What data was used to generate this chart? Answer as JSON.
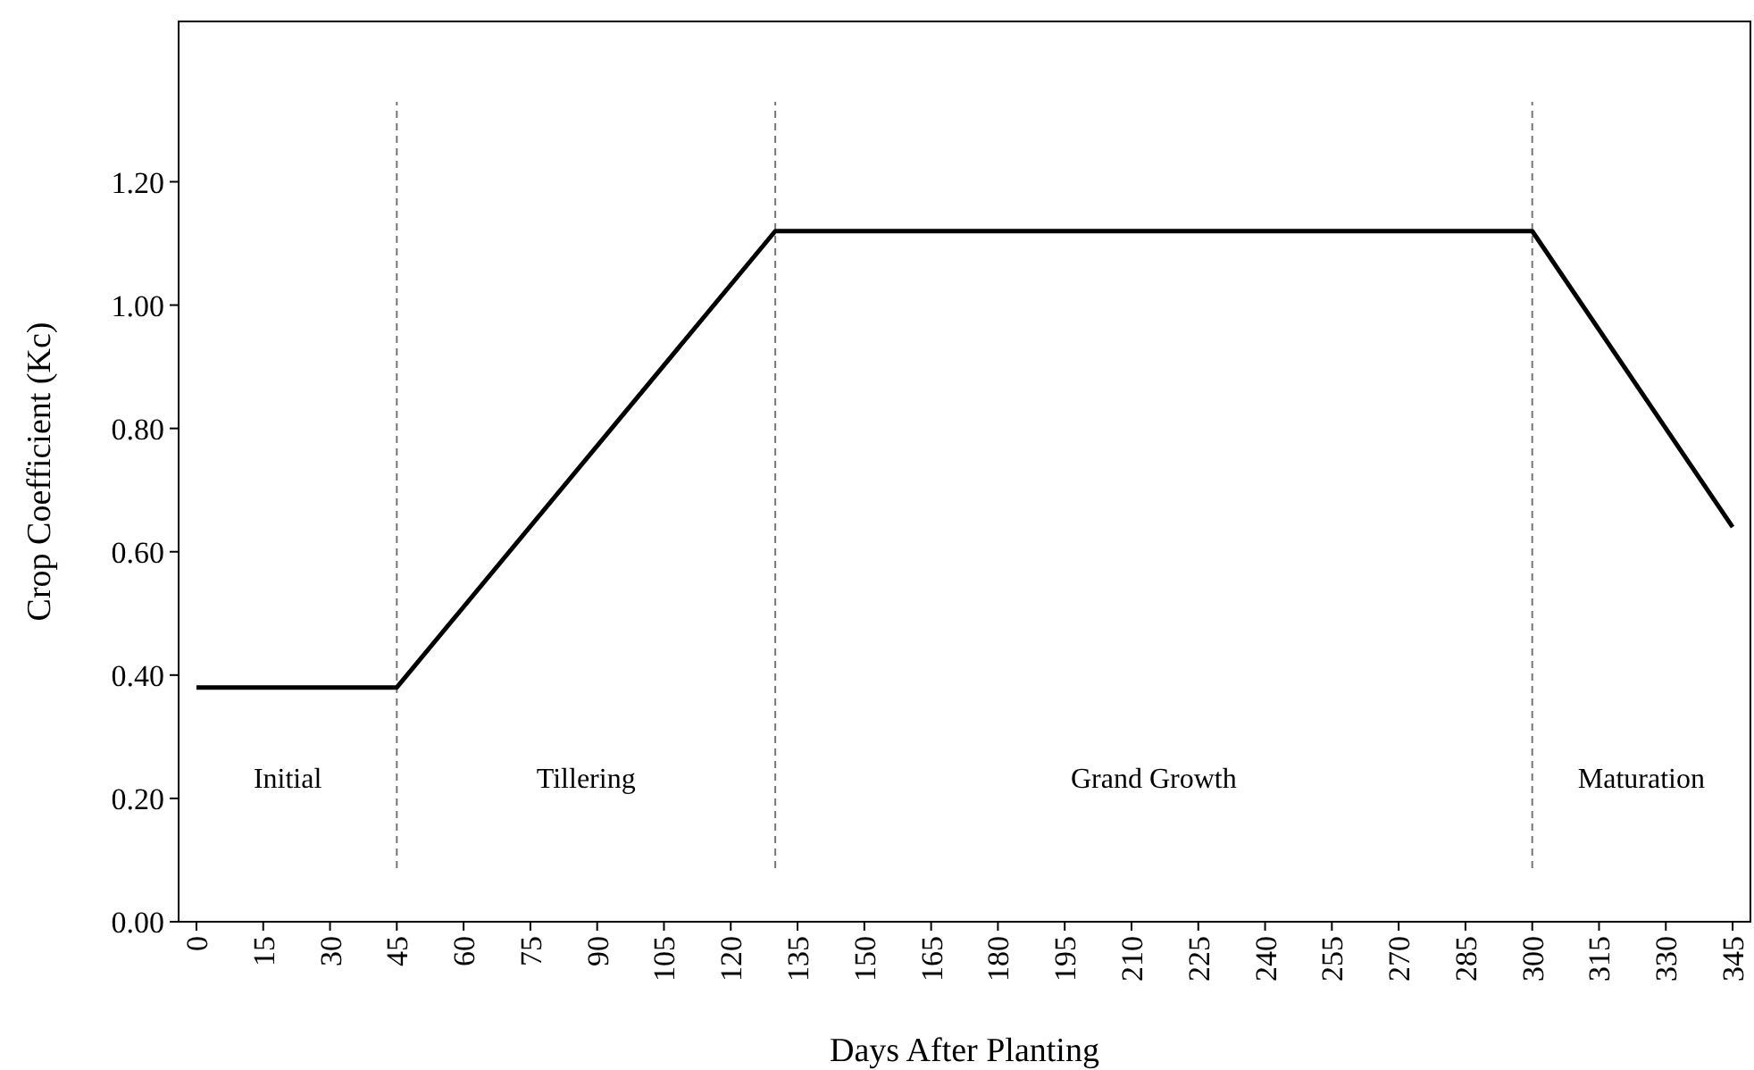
{
  "chart_data": {
    "type": "line",
    "xlabel": "Days After Planting",
    "ylabel": "Crop Coefficient (Kc)",
    "series": [
      {
        "color": "#000000",
        "x": [
          0,
          45,
          130,
          300,
          345
        ],
        "values": [
          0.38,
          0.38,
          1.12,
          1.12,
          0.64
        ]
      }
    ],
    "xlim": [
      -4,
      349
    ],
    "xticks": [
      0,
      15,
      30,
      45,
      60,
      75,
      90,
      105,
      120,
      135,
      150,
      165,
      180,
      195,
      210,
      225,
      240,
      255,
      270,
      285,
      300,
      315,
      330,
      345
    ],
    "ylim": [
      0,
      1.46
    ],
    "yticks": [
      {
        "value": 0,
        "label": "0.00"
      },
      {
        "value": 0.2,
        "label": "0.20"
      },
      {
        "value": 0.4,
        "label": "0.40"
      },
      {
        "value": 0.6,
        "label": "0.60"
      },
      {
        "value": 0.8,
        "label": "0.80"
      },
      {
        "value": 1,
        "label": "1.00"
      },
      {
        "value": 1.2,
        "label": "1.20"
      }
    ],
    "ref_lines": [
      {
        "axis": "x",
        "value": 45,
        "line_style": "dashed",
        "color": "#777777"
      },
      {
        "axis": "x",
        "value": 130,
        "line_style": "dashed",
        "color": "#777777"
      },
      {
        "axis": "x",
        "value": 300,
        "line_style": "dashed",
        "color": "#777777"
      }
    ],
    "annotations": [
      "Initial",
      "Tillering",
      "Grand Growth",
      "Maturation"
    ],
    "grid": false,
    "marker": "none",
    "line_style": "solid"
  }
}
